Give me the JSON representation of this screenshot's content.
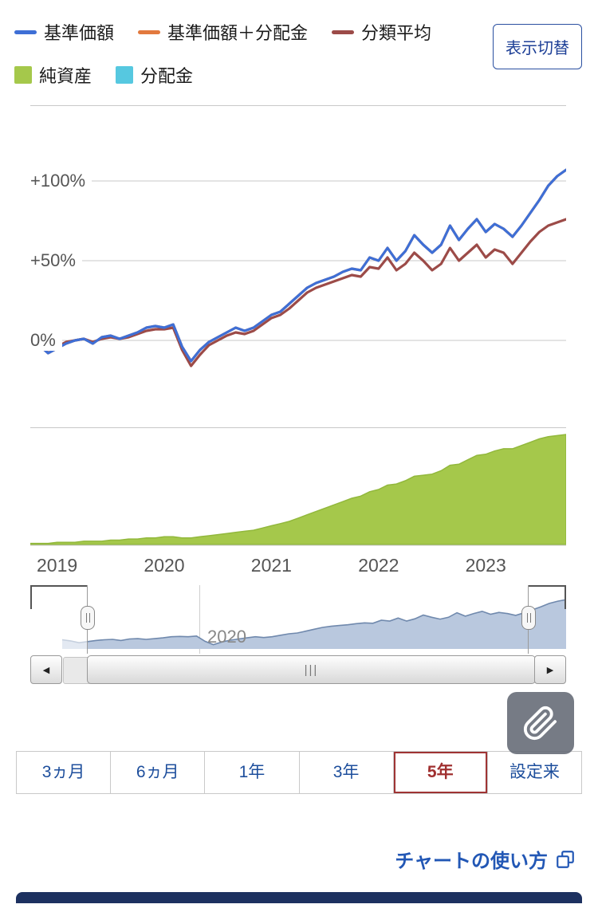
{
  "legend": {
    "items": [
      {
        "label": "基準価額",
        "color": "#3e6fd6",
        "swatch": "line"
      },
      {
        "label": "基準価額＋分配金",
        "color": "#e2793e",
        "swatch": "line"
      },
      {
        "label": "分類平均",
        "color": "#9c4b48",
        "swatch": "line"
      },
      {
        "label": "純資産",
        "color": "#a5c84b",
        "swatch": "square"
      },
      {
        "label": "分配金",
        "color": "#56c8e0",
        "swatch": "square"
      }
    ],
    "toggle_button": "表示切替"
  },
  "chart_data": {
    "type": "line",
    "price_chart": {
      "type": "line",
      "unit": "percent return",
      "yticks": [
        {
          "label": "+100%",
          "value": 100
        },
        {
          "label": "+50%",
          "value": 50
        },
        {
          "label": "0%",
          "value": 0
        }
      ],
      "ylim": [
        -30,
        130
      ],
      "x": {
        "start_year": 2018.75,
        "end_year": 2023.75,
        "points": 61,
        "interval": "monthly"
      },
      "xticks": [
        "2019",
        "2020",
        "2021",
        "2022",
        "2023"
      ],
      "series": [
        {
          "name": "基準価額",
          "color": "#3e6fd6",
          "values": [
            0,
            -3,
            -8,
            -5,
            -2,
            0,
            1,
            -2,
            2,
            3,
            1,
            3,
            5,
            8,
            9,
            8,
            10,
            -4,
            -13,
            -6,
            -1,
            2,
            5,
            8,
            6,
            8,
            12,
            16,
            18,
            23,
            28,
            33,
            36,
            38,
            40,
            43,
            45,
            44,
            52,
            50,
            58,
            50,
            56,
            66,
            60,
            55,
            60,
            72,
            63,
            70,
            76,
            68,
            73,
            70,
            65,
            72,
            80,
            88,
            97,
            103,
            107
          ]
        },
        {
          "name": "基準価額＋分配金",
          "color": "#e2793e",
          "values": [],
          "overlaps": "基準価額"
        },
        {
          "name": "分類平均",
          "color": "#9c4b48",
          "values": [
            0,
            -2,
            -6,
            -4,
            -1,
            0,
            1,
            -1,
            1,
            2,
            1,
            2,
            4,
            6,
            7,
            7,
            8,
            -6,
            -16,
            -9,
            -3,
            0,
            3,
            5,
            4,
            6,
            10,
            14,
            16,
            20,
            25,
            30,
            33,
            35,
            37,
            39,
            41,
            40,
            46,
            45,
            52,
            44,
            48,
            55,
            50,
            44,
            48,
            58,
            50,
            55,
            60,
            52,
            57,
            55,
            48,
            55,
            62,
            68,
            72,
            74,
            76
          ]
        }
      ]
    },
    "assets_chart": {
      "type": "area",
      "name": "純資産",
      "color": "#a5c84b",
      "values": [
        1,
        1,
        1,
        2,
        2,
        2,
        3,
        3,
        3,
        4,
        4,
        5,
        5,
        6,
        6,
        7,
        7,
        6,
        6,
        7,
        8,
        9,
        10,
        11,
        12,
        13,
        15,
        17,
        19,
        21,
        24,
        27,
        30,
        33,
        36,
        39,
        42,
        44,
        48,
        50,
        54,
        55,
        58,
        62,
        63,
        64,
        67,
        72,
        73,
        77,
        81,
        82,
        85,
        87,
        87,
        90,
        93,
        96,
        98,
        99,
        100
      ]
    },
    "navigator": {
      "type": "area",
      "label": "2020",
      "fill": "#b9c8de",
      "line": "#7089ad",
      "source": "基準価額"
    }
  },
  "scrollbar": {
    "left_arrow": "◀",
    "right_arrow": "▶",
    "grip": "|||"
  },
  "period_tabs": {
    "items": [
      {
        "label": "3ヵ月",
        "selected": false
      },
      {
        "label": "6ヵ月",
        "selected": false
      },
      {
        "label": "1年",
        "selected": false
      },
      {
        "label": "3年",
        "selected": false
      },
      {
        "label": "5年",
        "selected": true
      },
      {
        "label": "設定来",
        "selected": false
      }
    ]
  },
  "footer_link": {
    "label": "チャートの使い方"
  }
}
